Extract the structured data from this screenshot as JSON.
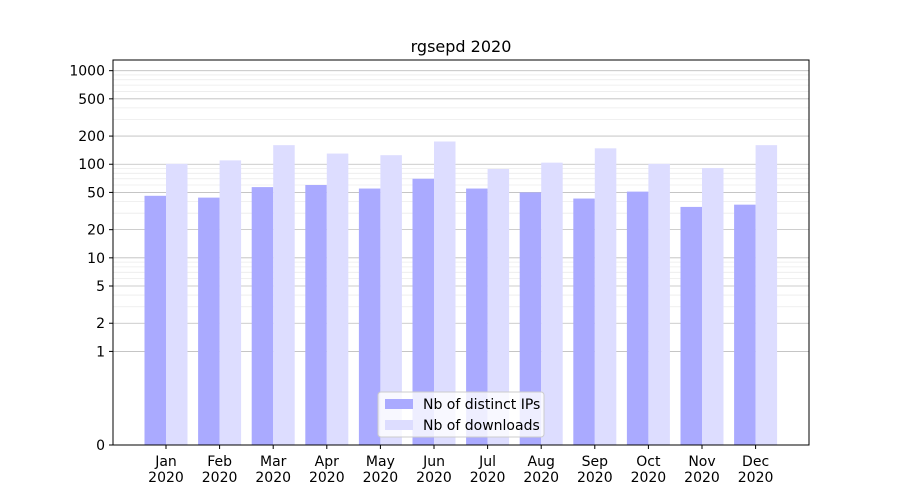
{
  "chart_data": {
    "type": "bar",
    "title": "rgsepd 2020",
    "xlabel": "",
    "ylabel": "",
    "yscale": "symlog",
    "ylim": [
      0,
      1300
    ],
    "yticks": [
      0,
      1,
      2,
      5,
      10,
      20,
      50,
      100,
      200,
      500,
      1000
    ],
    "ytick_labels": [
      "0",
      "1",
      "2",
      "5",
      "10",
      "20",
      "50",
      "100",
      "200",
      "500",
      "1000"
    ],
    "categories": [
      "Jan\n2020",
      "Feb\n2020",
      "Mar\n2020",
      "Apr\n2020",
      "May\n2020",
      "Jun\n2020",
      "Jul\n2020",
      "Aug\n2020",
      "Sep\n2020",
      "Oct\n2020",
      "Nov\n2020",
      "Dec\n2020"
    ],
    "category_lines": [
      [
        "Jan",
        "2020"
      ],
      [
        "Feb",
        "2020"
      ],
      [
        "Mar",
        "2020"
      ],
      [
        "Apr",
        "2020"
      ],
      [
        "May",
        "2020"
      ],
      [
        "Jun",
        "2020"
      ],
      [
        "Jul",
        "2020"
      ],
      [
        "Aug",
        "2020"
      ],
      [
        "Sep",
        "2020"
      ],
      [
        "Oct",
        "2020"
      ],
      [
        "Nov",
        "2020"
      ],
      [
        "Dec",
        "2020"
      ]
    ],
    "series": [
      {
        "name": "Nb of distinct IPs",
        "color": "#aaaaff",
        "values": [
          46,
          44,
          57,
          60,
          55,
          70,
          55,
          50,
          43,
          51,
          35,
          37
        ]
      },
      {
        "name": "Nb of downloads",
        "color": "#ddddff",
        "values": [
          101,
          110,
          160,
          130,
          125,
          175,
          89,
          104,
          148,
          101,
          91,
          160
        ]
      }
    ],
    "legend_position": "lower-center",
    "grid": "horizontal"
  }
}
